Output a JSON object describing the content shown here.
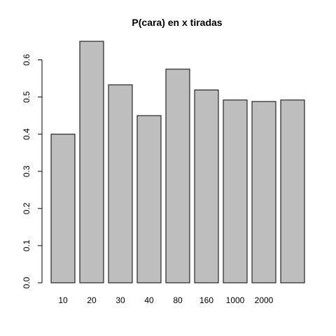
{
  "chart_data": {
    "type": "bar",
    "title": "P(cara) en x tiradas",
    "xlabel": "",
    "ylabel": "",
    "categories": [
      "10",
      "20",
      "30",
      "40",
      "80",
      "160",
      "1000",
      "2000",
      ""
    ],
    "values": [
      0.4,
      0.65,
      0.533,
      0.45,
      0.575,
      0.519,
      0.492,
      0.488,
      0.492
    ],
    "ylim": [
      0,
      0.65
    ],
    "yticks": [
      "0.0",
      "0.1",
      "0.2",
      "0.3",
      "0.4",
      "0.5",
      "0.6"
    ],
    "grid": false,
    "bar_color": "#bebebe",
    "edge_color": "#000000"
  }
}
